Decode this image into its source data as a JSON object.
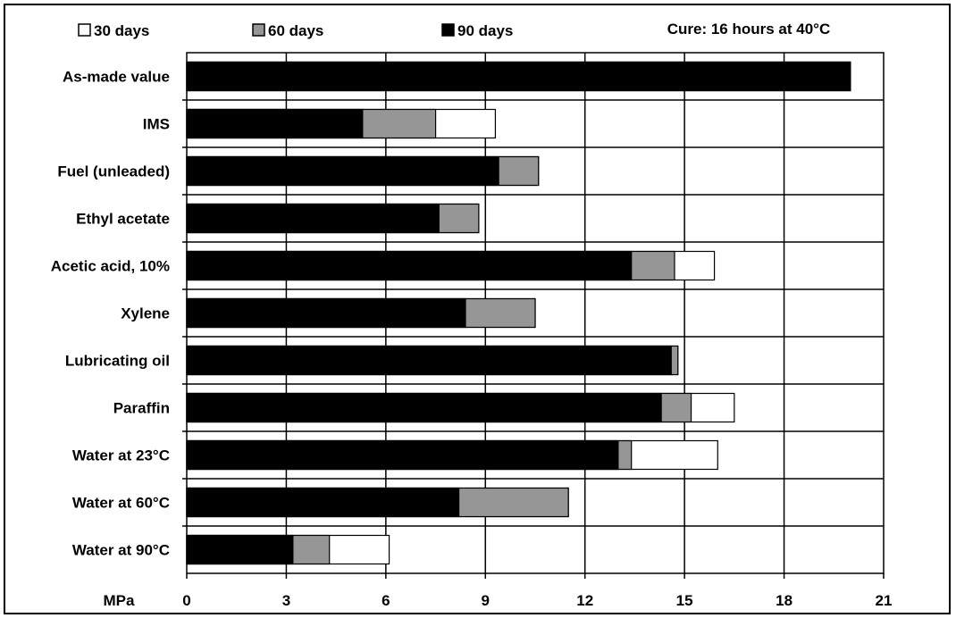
{
  "chart_data": {
    "type": "bar",
    "orientation": "horizontal",
    "stacking": "overlay",
    "annotation": "Cure: 16 hours at 40°C",
    "xlabel": "MPa",
    "xlim": [
      0,
      21
    ],
    "xticks": [
      "0",
      "3",
      "6",
      "9",
      "12",
      "15",
      "18",
      "21"
    ],
    "grid": true,
    "legend_position": "top",
    "categories": [
      "As-made value",
      "IMS",
      "Fuel (unleaded)",
      "Ethyl acetate",
      "Acetic acid, 10%",
      "Xylene",
      "Lubricating oil",
      "Paraffin",
      "Water at 23°C",
      "Water at 60°C",
      "Water at 90°C"
    ],
    "series": [
      {
        "name": "30 days",
        "color": "#ffffff",
        "values": [
          20,
          9.3,
          10.6,
          8.8,
          15.9,
          10.5,
          14.8,
          16.5,
          16.0,
          11.5,
          6.1
        ]
      },
      {
        "name": "60 days",
        "color": "#969696",
        "values": [
          20,
          7.5,
          10.6,
          8.8,
          14.7,
          10.5,
          14.8,
          15.2,
          13.4,
          11.5,
          4.3
        ]
      },
      {
        "name": "90 days",
        "color": "#000000",
        "values": [
          20,
          5.3,
          9.4,
          7.6,
          13.4,
          8.4,
          14.6,
          14.3,
          13.0,
          8.2,
          3.2
        ]
      }
    ]
  }
}
